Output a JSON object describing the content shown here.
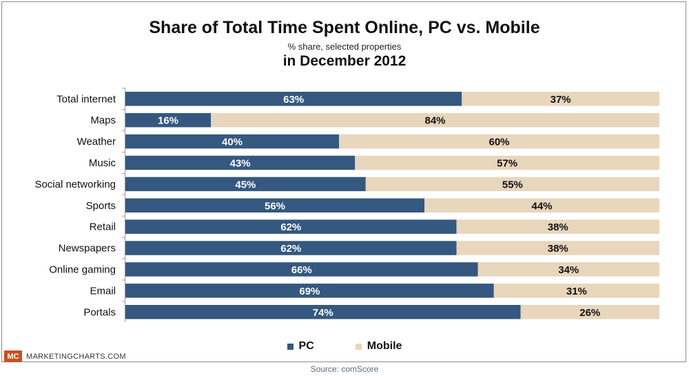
{
  "header": {
    "title": "Share of Total Time Spent Online, PC vs. Mobile",
    "subtitle": "% share, selected properties",
    "subtitle2": "in December 2012"
  },
  "legend": {
    "pc": "PC",
    "mobile": "Mobile"
  },
  "footer": {
    "logo_mark": "MC",
    "logo_text": "MARKETINGCHARTS.COM",
    "source": "Source: comScore"
  },
  "colors": {
    "pc": "#34587f",
    "mobile": "#e8d6bd"
  },
  "chart_data": {
    "type": "bar",
    "orientation": "horizontal",
    "stacked": true,
    "title": "Share of Total Time Spent Online, PC vs. Mobile",
    "subtitle": "% share, selected properties",
    "categories": [
      "Total internet",
      "Maps",
      "Weather",
      "Music",
      "Social networking",
      "Sports",
      "Retail",
      "Newspapers",
      "Online gaming",
      "Email",
      "Portals"
    ],
    "series": [
      {
        "name": "PC",
        "values": [
          63,
          16,
          40,
          43,
          45,
          56,
          62,
          62,
          66,
          69,
          74
        ],
        "labels": [
          "63%",
          "16%",
          "40%",
          "43%",
          "45%",
          "56%",
          "62%",
          "62%",
          "66%",
          "69%",
          "74%"
        ]
      },
      {
        "name": "Mobile",
        "values": [
          37,
          84,
          60,
          57,
          55,
          44,
          38,
          38,
          34,
          31,
          26
        ],
        "labels": [
          "37%",
          "84%",
          "60%",
          "57%",
          "55%",
          "44%",
          "38%",
          "38%",
          "34%",
          "31%",
          "26%"
        ]
      }
    ],
    "xlim": [
      0,
      100
    ],
    "grid": false,
    "legend_position": "bottom"
  }
}
